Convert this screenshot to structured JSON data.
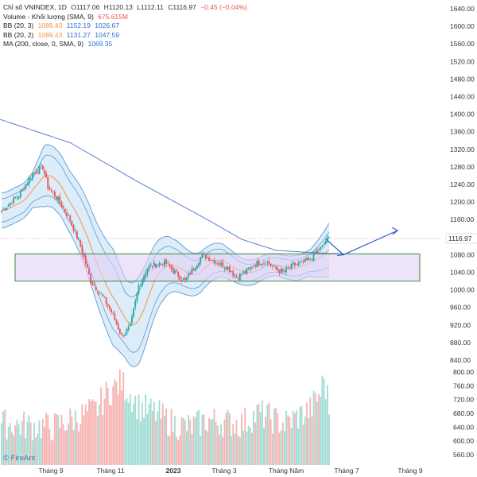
{
  "legend": {
    "line1": {
      "name": "Chỉ số VNINDEX, 1D",
      "o": "O1117.06",
      "h": "H1120.13",
      "l": "L1112.11",
      "c": "C1116.97",
      "chg": "−0.45 (−0.04%)"
    },
    "line2": {
      "name": "Volume - Khối lượng (SMA, 9)",
      "v1": "675.615M"
    },
    "line3": {
      "name": "BB (20, 3)",
      "v1": "1089.43",
      "v2": "1152.19",
      "v3": "1026.67"
    },
    "line4": {
      "name": "BB (20, 2)",
      "v1": "1089.43",
      "v2": "1131.27",
      "v3": "1047.59"
    },
    "line5": {
      "name": "MA (200, close, 0, SMA, 9)",
      "v1": "1069.35"
    }
  },
  "watermark": "FireAnt",
  "colors": {
    "up": "#26a69a",
    "down": "#ef5350",
    "bb_outer": "#5b9bd5",
    "bb_fill": "#d6e9f8",
    "bb_mid": "#f59642",
    "ma": "#5b7fd1",
    "zone_fill": "#e2d2f5",
    "zone_border": "#3a8a3a",
    "arrow": "#2a5fc7",
    "price_label": "#ef5350"
  },
  "chart_data": {
    "type": "candlestick",
    "price_axis": {
      "ticks": [
        1640,
        1600,
        1560,
        1520,
        1480,
        1440,
        1400,
        1360,
        1320,
        1280,
        1240,
        1200,
        1160,
        1120,
        1080,
        1040,
        1000,
        960,
        920,
        880,
        840
      ]
    },
    "volume_axis": {
      "ticks": [
        800,
        760,
        720,
        680,
        640,
        600,
        560
      ]
    },
    "current_price": "1116.97",
    "x_labels": [
      "Tháng 9",
      "Tháng 11",
      "2023",
      "Tháng 3",
      "Tháng Năm",
      "Tháng 7",
      "Tháng 9"
    ],
    "close_path": [
      [
        0,
        1180
      ],
      [
        10,
        1215
      ],
      [
        18,
        1265
      ],
      [
        24,
        1280
      ],
      [
        27,
        1235
      ],
      [
        33,
        1205
      ],
      [
        40,
        1160
      ],
      [
        46,
        1100
      ],
      [
        52,
        1020
      ],
      [
        58,
        990
      ],
      [
        64,
        950
      ],
      [
        70,
        895
      ],
      [
        75,
        915
      ],
      [
        80,
        1010
      ],
      [
        85,
        1050
      ],
      [
        92,
        1060
      ],
      [
        96,
        1060
      ],
      [
        101,
        1040
      ],
      [
        107,
        1020
      ],
      [
        112,
        1050
      ],
      [
        117,
        1080
      ],
      [
        122,
        1070
      ],
      [
        127,
        1060
      ],
      [
        132,
        1050
      ],
      [
        137,
        1030
      ],
      [
        142,
        1040
      ],
      [
        148,
        1060
      ],
      [
        154,
        1065
      ],
      [
        159,
        1050
      ],
      [
        164,
        1040
      ],
      [
        170,
        1055
      ],
      [
        176,
        1062
      ],
      [
        180,
        1070
      ],
      [
        184,
        1088
      ],
      [
        187,
        1098
      ],
      [
        189,
        1112
      ],
      [
        191,
        1117
      ]
    ],
    "volume_profile": [
      [
        0,
        650
      ],
      [
        30,
        640
      ],
      [
        55,
        690
      ],
      [
        62,
        740
      ],
      [
        70,
        770
      ],
      [
        80,
        700
      ],
      [
        90,
        680
      ],
      [
        100,
        650
      ],
      [
        110,
        640
      ],
      [
        120,
        660
      ],
      [
        140,
        650
      ],
      [
        150,
        680
      ],
      [
        165,
        650
      ],
      [
        180,
        690
      ],
      [
        186,
        740
      ],
      [
        188,
        780
      ],
      [
        191,
        700
      ]
    ],
    "bb_width_outer": [
      [
        0,
        40
      ],
      [
        18,
        40
      ],
      [
        25,
        70
      ],
      [
        40,
        70
      ],
      [
        55,
        90
      ],
      [
        65,
        110
      ],
      [
        72,
        90
      ],
      [
        80,
        100
      ],
      [
        90,
        80
      ],
      [
        100,
        60
      ],
      [
        110,
        50
      ],
      [
        125,
        40
      ],
      [
        140,
        30
      ],
      [
        160,
        25
      ],
      [
        180,
        30
      ],
      [
        191,
        60
      ]
    ],
    "bb_mid_lag": 5,
    "ma200_path": [
      [
        -10,
        1400
      ],
      [
        40,
        1335
      ],
      [
        80,
        1245
      ],
      [
        120,
        1160
      ],
      [
        140,
        1115
      ],
      [
        160,
        1090
      ],
      [
        180,
        1085
      ],
      [
        191,
        1083
      ]
    ],
    "zone": {
      "from": 1020,
      "to": 1082
    },
    "arrow_targets": [
      [
        1116,
        1080
      ],
      [
        1080,
        1135
      ]
    ],
    "n_bars": 192
  }
}
